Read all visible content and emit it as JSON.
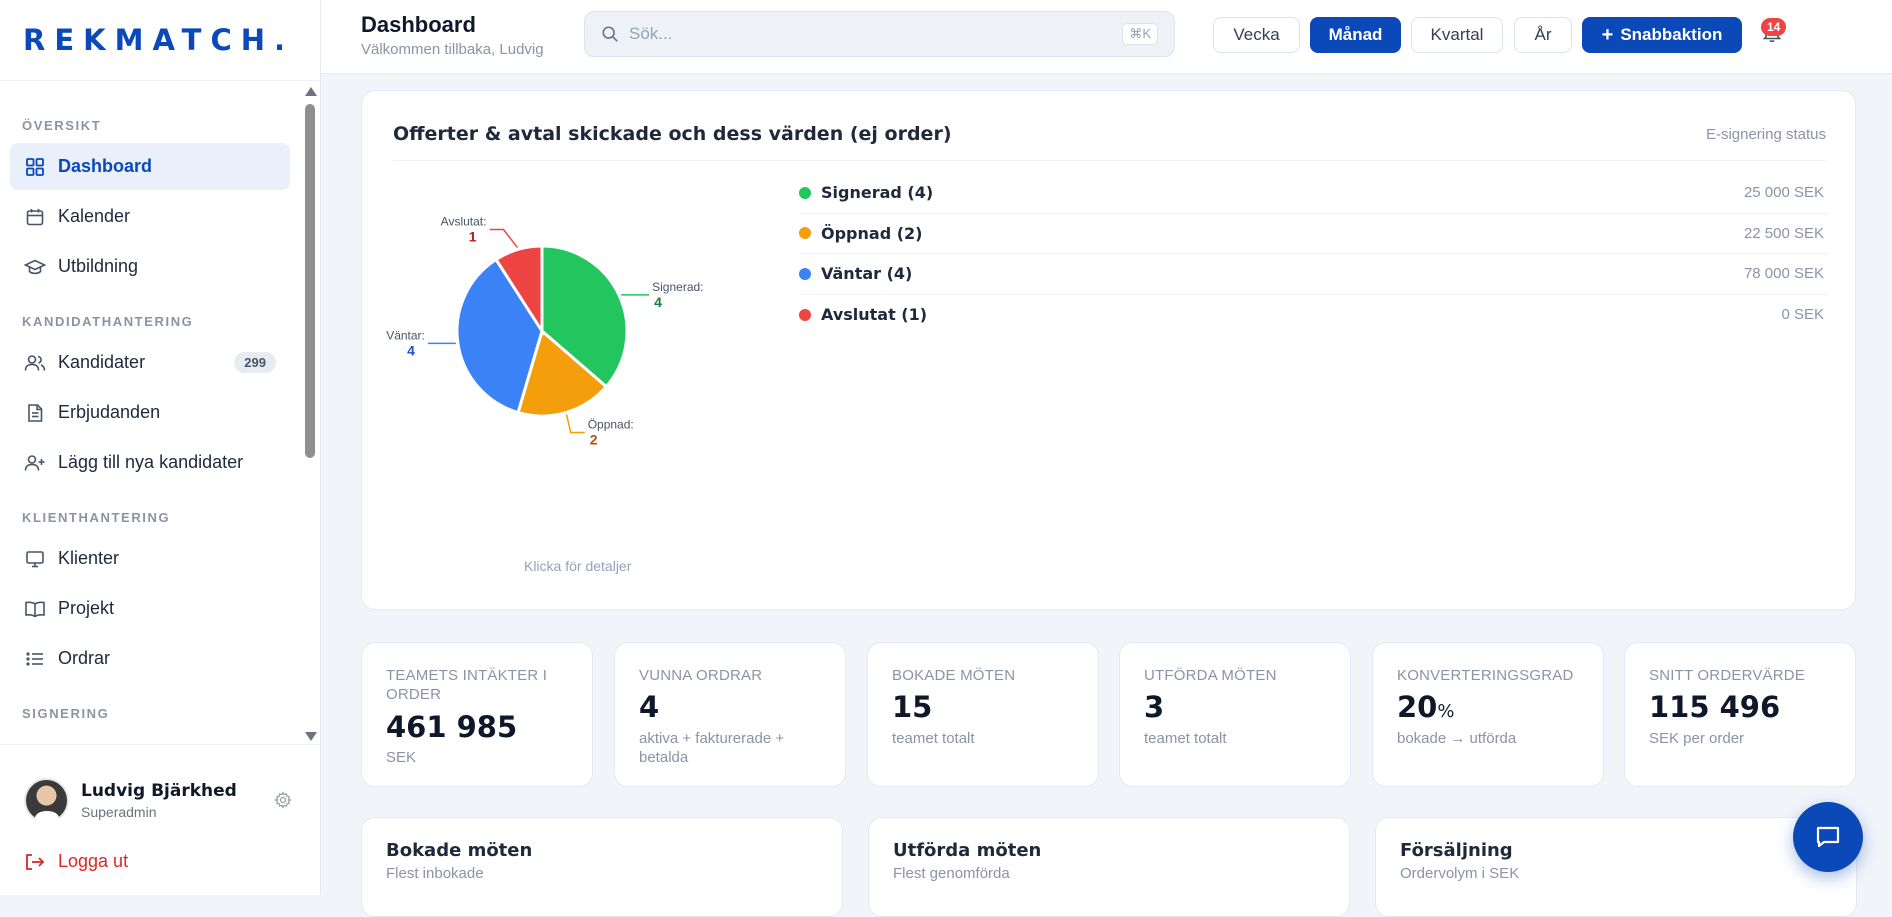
{
  "brand": {
    "logo_text": "REKMATCH."
  },
  "sidebar": {
    "sections": [
      {
        "title": "ÖVERSIKT"
      },
      {
        "title": "KANDIDATHANTERING"
      },
      {
        "title": "KLIENTHANTERING"
      },
      {
        "title": "SIGNERING"
      }
    ],
    "items": [
      {
        "label": "Dashboard",
        "icon": "dashboard-grid-icon",
        "active": true
      },
      {
        "label": "Kalender",
        "icon": "calendar-icon"
      },
      {
        "label": "Utbildning",
        "icon": "graduation-cap-icon"
      },
      {
        "label": "Kandidater",
        "icon": "users-icon",
        "badge": "299"
      },
      {
        "label": "Erbjudanden",
        "icon": "document-icon"
      },
      {
        "label": "Lägg till nya kandidater",
        "icon": "user-plus-icon"
      },
      {
        "label": "Klienter",
        "icon": "monitor-icon"
      },
      {
        "label": "Projekt",
        "icon": "book-open-icon"
      },
      {
        "label": "Ordrar",
        "icon": "list-icon"
      }
    ],
    "user": {
      "name": "Ludvig Bjärkhed",
      "role": "Superadmin"
    },
    "logout_label": "Logga ut"
  },
  "header": {
    "title": "Dashboard",
    "subtitle": "Välkommen tillbaka, Ludvig",
    "search_placeholder": "Sök...",
    "search_shortcut": "⌘K",
    "periods": [
      "Vecka",
      "Månad",
      "Kvartal",
      "År"
    ],
    "active_period": "Månad",
    "quick_action_label": "Snabbaktion",
    "notification_count": "14"
  },
  "chart_card": {
    "title": "Offerter & avtal skickade och dess värden (ej order)",
    "status_label": "E-signering status",
    "hint": "Klicka för detaljer",
    "legend": [
      {
        "label": "Signerad (4)",
        "value": "25 000 SEK",
        "color": "#22c55e"
      },
      {
        "label": "Öppnad (2)",
        "value": "22 500 SEK",
        "color": "#f59e0b"
      },
      {
        "label": "Väntar (4)",
        "value": "78 000 SEK",
        "color": "#3b82f6"
      },
      {
        "label": "Avslutat (1)",
        "value": "0 SEK",
        "color": "#ef4444"
      }
    ],
    "pie_labels": [
      {
        "name": "Signerad:",
        "count": "4",
        "color": "#15803d"
      },
      {
        "name": "Öppnad:",
        "count": "2",
        "color": "#b45309"
      },
      {
        "name": "Väntar:",
        "count": "4",
        "color": "#1d4ed8"
      },
      {
        "name": "Avslutat:",
        "count": "1",
        "color": "#b91c1c"
      }
    ]
  },
  "chart_data": {
    "type": "pie",
    "categories": [
      "Signerad",
      "Öppnad",
      "Väntar",
      "Avslutat"
    ],
    "values": [
      4,
      2,
      4,
      1
    ],
    "colors": [
      "#22c55e",
      "#f59e0b",
      "#3b82f6",
      "#ef4444"
    ]
  },
  "kpis": [
    {
      "label": "TEAMETS INTÄKTER I ORDER",
      "value": "461 985",
      "unit": "",
      "sub": "SEK"
    },
    {
      "label": "VUNNA ORDRAR",
      "value": "4",
      "unit": "",
      "sub": "aktiva + fakturerade + betalda"
    },
    {
      "label": "BOKADE MÖTEN",
      "value": "15",
      "unit": "",
      "sub": "teamet totalt"
    },
    {
      "label": "UTFÖRDA MÖTEN",
      "value": "3",
      "unit": "",
      "sub": "teamet totalt"
    },
    {
      "label": "KONVERTERINGSGRAD",
      "value": "20",
      "unit": "%",
      "sub": "bokade → utförda"
    },
    {
      "label": "SNITT ORDERVÄRDE",
      "value": "115 496",
      "unit": "",
      "sub": "SEK per order"
    }
  ],
  "bottom_cards": [
    {
      "title": "Bokade möten",
      "sub": "Flest inbokade"
    },
    {
      "title": "Utförda möten",
      "sub": "Flest genomförda"
    },
    {
      "title": "Försäljning",
      "sub": "Ordervolym i SEK"
    }
  ],
  "colors": {
    "brand": "#0b48b8",
    "accent_bg": "#e9f0fb",
    "danger": "#dc2626"
  }
}
